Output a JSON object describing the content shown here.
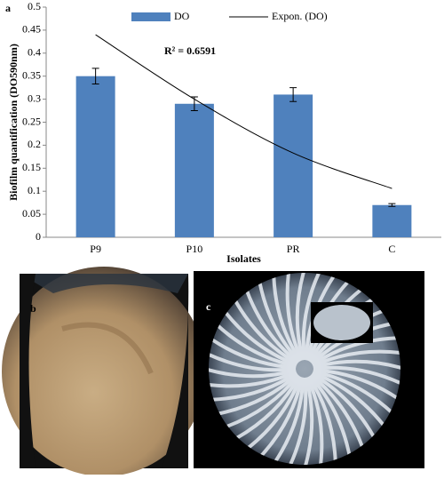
{
  "chart_data": {
    "type": "bar",
    "y_label": "Biofilm quantification  (DO590nm)",
    "x_label": "Isolates",
    "annotation": "R² = 0.6591",
    "categories": [
      "P9",
      "P10",
      "PR",
      "C"
    ],
    "series": [
      {
        "name": "DO",
        "color": "#4f81bd",
        "values": [
          0.35,
          0.29,
          0.31,
          0.07
        ],
        "errors": [
          0.017,
          0.015,
          0.015,
          0.003
        ]
      },
      {
        "name": "Expon. (DO)",
        "color": "#000000",
        "values": [
          0.44,
          0.3,
          0.183,
          0.106
        ]
      }
    ],
    "ylim": [
      0,
      0.5
    ],
    "yticks": [
      0,
      0.05,
      0.1,
      0.15,
      0.2,
      0.25,
      0.3,
      0.35,
      0.4,
      0.45,
      0.5
    ],
    "legend": "top"
  },
  "panel_labels": [
    "a",
    "b",
    "c"
  ]
}
